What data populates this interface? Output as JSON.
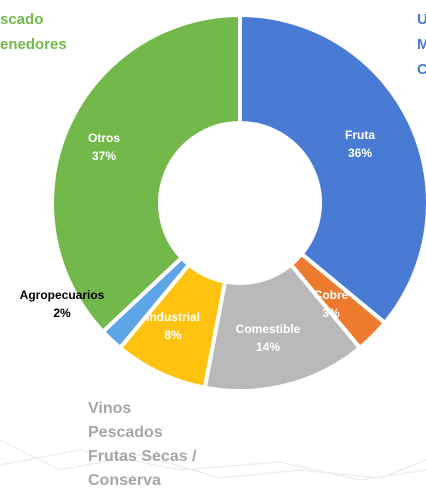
{
  "chart_data": {
    "type": "pie",
    "categories": [
      "Fruta",
      "Cobre",
      "Comestible",
      "Industrial",
      "Agropecuarios",
      "Otros"
    ],
    "values": [
      36,
      3,
      14,
      8,
      2,
      37
    ],
    "value_labels": [
      "36%",
      "3%",
      "14%",
      "8%",
      "2%",
      "37%"
    ],
    "colors": [
      "#4a7bd4",
      "#ee7a2d",
      "#b9b9b9",
      "#ffc20e",
      "#5da5e6",
      "#73b84b"
    ],
    "annotations": [
      {
        "lines": [
          "scado",
          "enedores"
        ],
        "color": "#73b84b"
      },
      {
        "lines": [
          "U",
          "M",
          "C"
        ],
        "color": "#4a7bd4"
      },
      {
        "lines": [
          "Vinos",
          "Pescados",
          "Frutas Secas /",
          "Conserva"
        ],
        "color": "#a6a6a6"
      }
    ]
  }
}
